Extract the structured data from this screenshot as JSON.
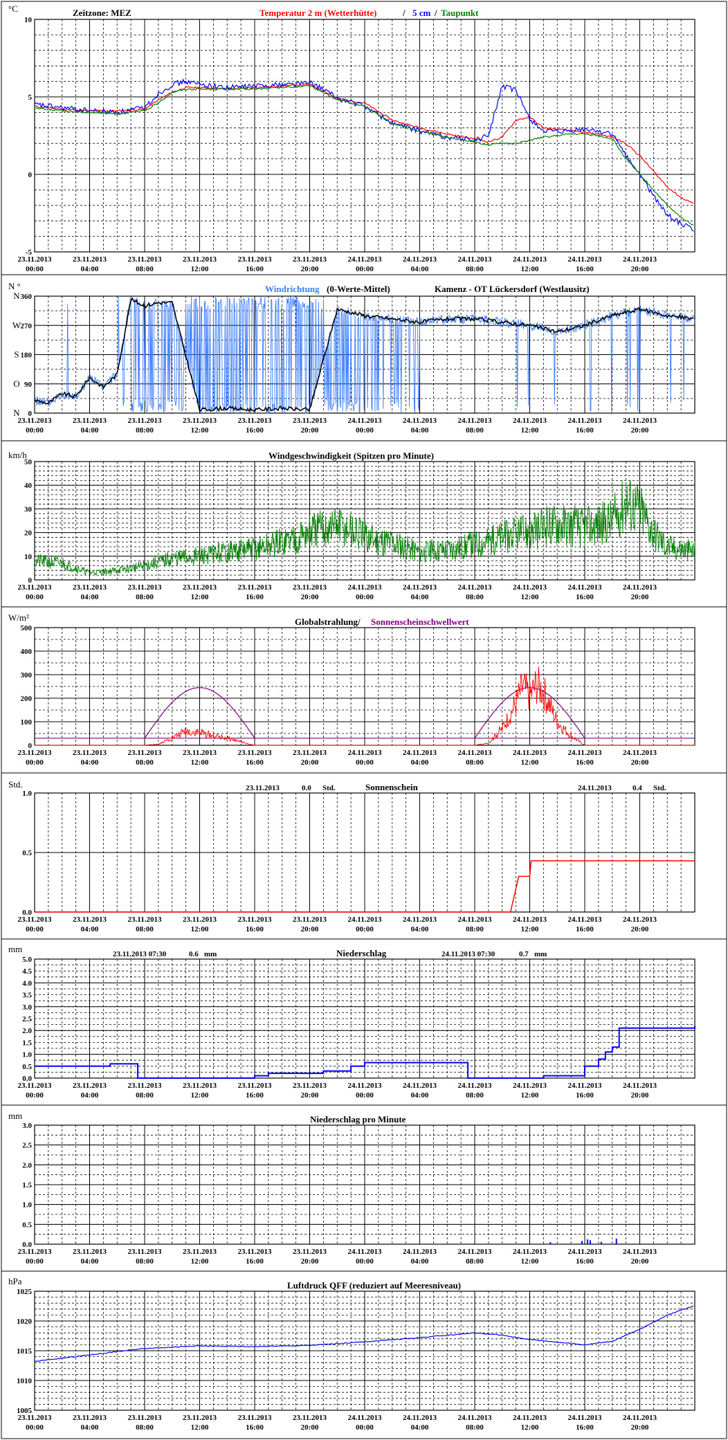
{
  "x_ticks_dates": [
    "23.11.2013",
    "23.11.2013",
    "23.11.2013",
    "23.11.2013",
    "23.11.2013",
    "23.11.2013",
    "24.11.2013",
    "24.11.2013",
    "24.11.2013",
    "24.11.2013",
    "24.11.2013",
    "24.11.2013"
  ],
  "x_ticks_times": [
    "00:00",
    "04:00",
    "08:00",
    "12:00",
    "16:00",
    "20:00",
    "00:00",
    "04:00",
    "08:00",
    "12:00",
    "16:00",
    "20:00"
  ],
  "colors": {
    "temp2m": "#ff0000",
    "temp5cm": "#0000ff",
    "dewpoint": "#008000",
    "wind_dir": "#3a7bff",
    "wind_dir_mean": "#000000",
    "wind_speed": "#008000",
    "global_rad": "#ff0000",
    "sun_threshold": "#800080",
    "sunshine": "#ff0000",
    "precip": "#0000ff",
    "pressure": "#0000ff"
  },
  "chart_data": [
    {
      "type": "line",
      "unit": "°C",
      "title_parts": {
        "zone": "Zeitzone: MEZ",
        "temp2m": "Temperatur 2 m (Wetterhütte)",
        "sep": "/",
        "temp5cm": "5 cm",
        "sep2": "/",
        "dew": "Taupunkt"
      },
      "ylim": [
        -5,
        10
      ],
      "yticks": [
        "-5",
        "0",
        "5",
        "10"
      ],
      "x_hours": [
        0,
        2,
        4,
        6,
        8,
        9,
        10,
        11,
        12,
        14,
        16,
        18,
        20,
        21,
        22,
        24,
        26,
        28,
        30,
        32,
        33,
        34,
        35,
        36,
        37,
        38,
        39,
        40,
        41,
        42,
        43,
        44,
        45,
        46,
        47,
        48
      ],
      "series": [
        {
          "name": "Temperatur 2 m (Wetterhütte)",
          "values": [
            4.4,
            4.2,
            4.1,
            4.1,
            4.2,
            4.8,
            5.3,
            5.6,
            5.6,
            5.5,
            5.6,
            5.7,
            5.8,
            5.4,
            4.9,
            4.6,
            3.5,
            3.0,
            2.6,
            2.3,
            2.1,
            2.4,
            3.5,
            3.7,
            3.0,
            2.9,
            2.8,
            2.7,
            2.6,
            2.4,
            2.0,
            1.2,
            0.2,
            -0.8,
            -1.5,
            -1.9
          ]
        },
        {
          "name": "5 cm",
          "values": [
            4.5,
            4.3,
            4.1,
            4.0,
            4.3,
            5.2,
            5.8,
            6.0,
            5.8,
            5.6,
            5.7,
            5.8,
            5.9,
            5.5,
            4.9,
            4.4,
            3.3,
            2.8,
            2.4,
            2.2,
            2.5,
            5.7,
            5.4,
            3.6,
            2.8,
            2.7,
            2.8,
            2.9,
            2.8,
            2.6,
            1.2,
            0.0,
            -1.4,
            -2.6,
            -3.2,
            -3.6
          ]
        },
        {
          "name": "Taupunkt",
          "values": [
            4.3,
            4.1,
            4.0,
            3.9,
            4.1,
            4.6,
            5.3,
            5.5,
            5.5,
            5.5,
            5.5,
            5.6,
            5.7,
            5.3,
            4.8,
            4.4,
            3.3,
            2.8,
            2.4,
            2.1,
            1.9,
            2.0,
            2.0,
            2.2,
            2.4,
            2.5,
            2.6,
            2.6,
            2.5,
            2.3,
            1.0,
            0.0,
            -1.0,
            -2.0,
            -2.8,
            -3.3
          ]
        }
      ]
    },
    {
      "type": "line",
      "unit": "N °",
      "title_parts": {
        "dir": "Windrichtung",
        "mean": "(0-Werte-Mittel)",
        "station": "Kamenz - OT Lückersdorf (Westlausitz)"
      },
      "ylim": [
        0,
        360
      ],
      "yticks": [
        "0",
        "90",
        "180",
        "270",
        "360"
      ],
      "compass": [
        "N",
        "O",
        "S",
        "W",
        "N"
      ],
      "x_hours": [
        0,
        1,
        2,
        3,
        4,
        5,
        6,
        7,
        8,
        9,
        10,
        12,
        14,
        16,
        18,
        20,
        22,
        24,
        26,
        28,
        30,
        32,
        34,
        36,
        38,
        40,
        42,
        44,
        46,
        48
      ],
      "series": [
        {
          "name": "mean",
          "values": [
            40,
            30,
            60,
            50,
            110,
            80,
            120,
            350,
            330,
            340,
            340,
            10,
            15,
            10,
            15,
            10,
            320,
            300,
            290,
            280,
            290,
            290,
            280,
            270,
            250,
            270,
            300,
            320,
            300,
            290
          ]
        }
      ]
    },
    {
      "type": "line",
      "unit": "km/h",
      "title": "Windgeschwindigkeit (Spitzen pro Minute)",
      "ylim": [
        0,
        50
      ],
      "yticks": [
        "0",
        "10",
        "20",
        "30",
        "40",
        "50"
      ],
      "x_hours": [
        0,
        2,
        4,
        6,
        8,
        10,
        12,
        14,
        16,
        18,
        20,
        22,
        24,
        26,
        28,
        30,
        32,
        34,
        36,
        38,
        40,
        42,
        43,
        44,
        45,
        46,
        48
      ],
      "series": [
        {
          "name": "Windgeschwindigkeit",
          "values": [
            8,
            7,
            3,
            4,
            6,
            9,
            10,
            12,
            13,
            16,
            20,
            23,
            18,
            16,
            12,
            13,
            15,
            18,
            20,
            24,
            22,
            25,
            33,
            30,
            20,
            14,
            12
          ]
        }
      ]
    },
    {
      "type": "line",
      "unit": "W/m²",
      "title_parts": {
        "rad": "Globalstrahlung/",
        "sun": "Sonnenscheinschwellwert"
      },
      "ylim": [
        0,
        500
      ],
      "yticks": [
        "0",
        "100",
        "200",
        "300",
        "400",
        "500"
      ],
      "x_hours": [
        0,
        8,
        9,
        10,
        11,
        12,
        13,
        14,
        15,
        15.5,
        16,
        32,
        33,
        34,
        35,
        35.5,
        36,
        36.5,
        37,
        38,
        39,
        40,
        48
      ],
      "series": [
        {
          "name": "Globalstrahlung",
          "values": [
            0,
            0,
            5,
            30,
            60,
            55,
            40,
            30,
            15,
            5,
            0,
            0,
            10,
            70,
            180,
            250,
            210,
            260,
            230,
            100,
            40,
            0,
            0
          ]
        }
      ],
      "threshold_value": 30,
      "envelopes": [
        {
          "start_h": 8,
          "end_h": 16,
          "peak": 245
        },
        {
          "start_h": 32,
          "end_h": 40,
          "peak": 245
        }
      ]
    },
    {
      "type": "line",
      "unit": "Std.",
      "title": "Sonnenschein",
      "summary_left": {
        "date": "23.11.2013",
        "value": "0.0",
        "unit": "Std."
      },
      "summary_right": {
        "date": "24.11.2013",
        "value": "0.4",
        "unit": "Std."
      },
      "ylim": [
        0,
        1
      ],
      "yticks": [
        "0.0",
        "0.5",
        "1.0"
      ],
      "x_hours": [
        0,
        34.6,
        35.2,
        36.0,
        36.1,
        48
      ],
      "series": [
        {
          "name": "Sonnenschein",
          "values": [
            0,
            0,
            0.3,
            0.3,
            0.43,
            0.43
          ]
        }
      ]
    },
    {
      "type": "line",
      "unit": "mm",
      "title": "Niederschlag",
      "summary_left": {
        "date": "23.11.2013 07:30",
        "value": "0.6",
        "unit": "mm"
      },
      "summary_right": {
        "date": "24.11.2013 07:30",
        "value": "0.7",
        "unit": "mm"
      },
      "ylim": [
        0,
        5
      ],
      "yticks": [
        "0.0",
        "0.5",
        "1.0",
        "1.5",
        "2.0",
        "2.5",
        "3.0",
        "3.5",
        "4.0",
        "4.5",
        "5.0"
      ],
      "x_hours": [
        0,
        5.5,
        7.5,
        16,
        17,
        21,
        23,
        24,
        31.5,
        37,
        40,
        41,
        41.5,
        42,
        42.5,
        48
      ],
      "series": [
        {
          "name": "Niederschlag",
          "values": [
            0.5,
            0.6,
            0.0,
            0.1,
            0.2,
            0.3,
            0.5,
            0.65,
            0.0,
            0.1,
            0.5,
            0.8,
            1.1,
            1.3,
            2.1,
            2.2
          ]
        }
      ]
    },
    {
      "type": "bar",
      "unit": "mm",
      "title": "Niederschlag pro Minute",
      "ylim": [
        0,
        3
      ],
      "yticks": [
        "0.0",
        "0.5",
        "1.0",
        "1.5",
        "2.0",
        "2.5",
        "3.0"
      ],
      "bars": [
        {
          "h": 37.5,
          "v": 0.05
        },
        {
          "h": 39.8,
          "v": 0.08
        },
        {
          "h": 40.2,
          "v": 0.12
        },
        {
          "h": 40.4,
          "v": 0.1
        },
        {
          "h": 41.2,
          "v": 0.06
        },
        {
          "h": 42.3,
          "v": 0.14
        }
      ]
    },
    {
      "type": "line",
      "unit": "hPa",
      "title": "Luftdruck QFF (reduziert auf Meeresniveau)",
      "ylim": [
        1005,
        1025
      ],
      "yticks": [
        "1005",
        "1010",
        "1015",
        "1020",
        "1025"
      ],
      "x_hours": [
        0,
        4,
        8,
        12,
        16,
        20,
        24,
        28,
        32,
        34,
        36,
        40,
        42,
        44,
        46,
        48
      ],
      "series": [
        {
          "name": "Luftdruck",
          "values": [
            1013.2,
            1014.3,
            1015.4,
            1015.8,
            1015.7,
            1015.9,
            1016.5,
            1017.2,
            1018.0,
            1017.6,
            1016.9,
            1016.0,
            1016.6,
            1018.6,
            1021.0,
            1022.6
          ]
        }
      ]
    }
  ]
}
